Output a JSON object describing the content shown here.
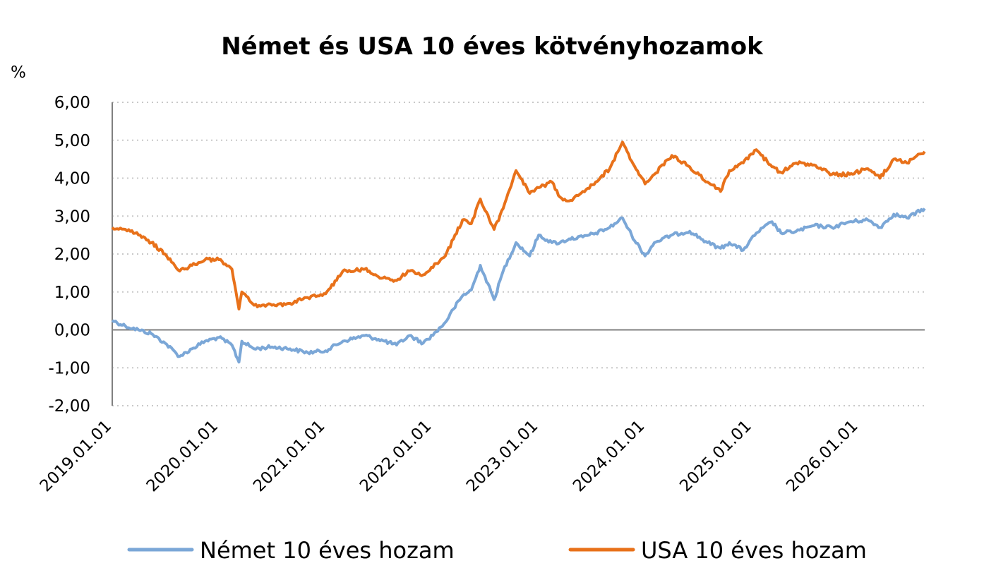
{
  "chart_data": {
    "type": "line",
    "title": "Német és USA 10 éves kötvényhozamok",
    "ylabel": "%",
    "xlabel": "",
    "ylim": [
      -2,
      6
    ],
    "xlim": [
      "2019-01-01",
      "2026-08-15"
    ],
    "y_ticks": [
      "-2,00",
      "-1,00",
      "0,00",
      "1,00",
      "2,00",
      "3,00",
      "4,00",
      "5,00",
      "6,00"
    ],
    "x_ticks": [
      "2019.01.01",
      "2020.01.01",
      "2021.01.01",
      "2022.01.01",
      "2023.01.01",
      "2024.01.01",
      "2025.01.01",
      "2026.01.01"
    ],
    "grid": "horizontal dotted",
    "legend_position": "bottom",
    "colors": {
      "de": "#7ba7d7",
      "us": "#e8711a",
      "axis": "#808080"
    },
    "series": [
      {
        "name": "Német 10 éves hozam",
        "x": [
          "2019-01-01",
          "2019-02-15",
          "2019-04-01",
          "2019-05-15",
          "2019-07-01",
          "2019-08-20",
          "2019-10-01",
          "2019-11-15",
          "2020-01-01",
          "2020-02-15",
          "2020-03-10",
          "2020-03-20",
          "2020-05-01",
          "2020-07-01",
          "2020-09-01",
          "2020-11-01",
          "2021-01-01",
          "2021-03-01",
          "2021-05-15",
          "2021-07-01",
          "2021-09-01",
          "2021-10-15",
          "2021-12-01",
          "2022-01-15",
          "2022-02-15",
          "2022-03-15",
          "2022-04-15",
          "2022-05-15",
          "2022-06-15",
          "2022-08-01",
          "2022-09-01",
          "2022-10-15",
          "2022-12-01",
          "2023-01-01",
          "2023-02-15",
          "2023-03-15",
          "2023-04-15",
          "2023-06-01",
          "2023-07-15",
          "2023-09-01",
          "2023-10-15",
          "2023-11-15",
          "2023-12-31",
          "2024-02-01",
          "2024-04-01",
          "2024-06-01",
          "2024-08-01",
          "2024-09-15",
          "2024-10-15",
          "2024-12-01",
          "2025-01-15",
          "2025-03-10",
          "2025-04-10",
          "2025-06-01",
          "2025-08-01",
          "2025-10-01",
          "2025-12-01",
          "2026-02-01",
          "2026-03-15",
          "2026-05-01",
          "2026-06-15",
          "2026-08-15"
        ],
        "values": [
          0.25,
          0.1,
          0.0,
          -0.1,
          -0.35,
          -0.7,
          -0.5,
          -0.3,
          -0.2,
          -0.4,
          -0.85,
          -0.3,
          -0.5,
          -0.45,
          -0.5,
          -0.6,
          -0.55,
          -0.3,
          -0.15,
          -0.25,
          -0.4,
          -0.15,
          -0.35,
          -0.05,
          0.2,
          0.55,
          0.9,
          1.05,
          1.7,
          0.8,
          1.55,
          2.3,
          1.95,
          2.5,
          2.3,
          2.3,
          2.4,
          2.45,
          2.55,
          2.7,
          2.95,
          2.5,
          1.95,
          2.3,
          2.5,
          2.6,
          2.3,
          2.15,
          2.3,
          2.1,
          2.55,
          2.85,
          2.55,
          2.6,
          2.75,
          2.7,
          2.85,
          2.9,
          2.7,
          3.05,
          2.95,
          3.2
        ]
      },
      {
        "name": "USA 10 éves hozam",
        "x": [
          "2019-01-01",
          "2019-02-15",
          "2019-04-01",
          "2019-05-15",
          "2019-07-01",
          "2019-08-20",
          "2019-10-01",
          "2019-11-15",
          "2020-01-01",
          "2020-02-15",
          "2020-03-10",
          "2020-03-20",
          "2020-05-01",
          "2020-07-01",
          "2020-09-01",
          "2020-11-01",
          "2021-01-01",
          "2021-03-01",
          "2021-05-15",
          "2021-07-01",
          "2021-09-01",
          "2021-10-15",
          "2021-12-01",
          "2022-01-15",
          "2022-02-15",
          "2022-03-15",
          "2022-04-15",
          "2022-05-15",
          "2022-06-15",
          "2022-08-01",
          "2022-09-01",
          "2022-10-15",
          "2022-12-01",
          "2023-01-01",
          "2023-02-15",
          "2023-03-15",
          "2023-04-15",
          "2023-06-01",
          "2023-07-15",
          "2023-09-01",
          "2023-10-15",
          "2023-11-15",
          "2023-12-31",
          "2024-02-01",
          "2024-04-01",
          "2024-06-01",
          "2024-08-01",
          "2024-09-15",
          "2024-10-15",
          "2024-12-01",
          "2025-01-15",
          "2025-03-10",
          "2025-04-10",
          "2025-06-01",
          "2025-08-01",
          "2025-10-01",
          "2025-12-01",
          "2026-02-01",
          "2026-03-15",
          "2026-05-01",
          "2026-06-15",
          "2026-08-15"
        ],
        "values": [
          2.7,
          2.65,
          2.5,
          2.3,
          2.0,
          1.55,
          1.7,
          1.85,
          1.85,
          1.6,
          0.55,
          1.0,
          0.65,
          0.65,
          0.7,
          0.85,
          0.95,
          1.55,
          1.6,
          1.4,
          1.3,
          1.55,
          1.45,
          1.75,
          1.95,
          2.4,
          2.9,
          2.8,
          3.45,
          2.65,
          3.2,
          4.2,
          3.6,
          3.75,
          3.9,
          3.5,
          3.4,
          3.65,
          3.9,
          4.25,
          4.95,
          4.45,
          3.85,
          4.1,
          4.6,
          4.3,
          3.9,
          3.65,
          4.2,
          4.4,
          4.75,
          4.3,
          4.15,
          4.4,
          4.35,
          4.1,
          4.1,
          4.25,
          4.0,
          4.5,
          4.4,
          4.7
        ]
      }
    ]
  }
}
